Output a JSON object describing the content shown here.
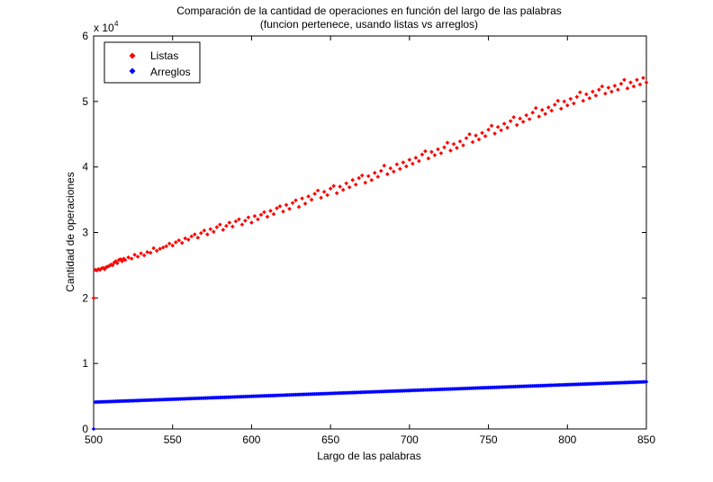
{
  "chart_data": {
    "type": "scatter",
    "title": "Comparación de la cantidad de operaciones en función del largo de las palabras",
    "subtitle": "(funcion pertenece, usando listas vs arreglos)",
    "xlabel": "Largo de las palabras",
    "ylabel": "Cantidad de operaciones",
    "xlim": [
      500,
      850
    ],
    "ylim": [
      0,
      60000
    ],
    "xticks": [
      500,
      550,
      600,
      650,
      700,
      750,
      800,
      850
    ],
    "yticks": [
      0,
      10000,
      20000,
      30000,
      40000,
      50000,
      60000
    ],
    "yticklabels": [
      "0",
      "1",
      "2",
      "3",
      "4",
      "5",
      "6"
    ],
    "y_exponent_base": "x 10",
    "y_exponent_power": "4",
    "grid": false,
    "legend_position": "top-left",
    "series": [
      {
        "name": "Listas",
        "color": "#ff0000",
        "marker": "diamond",
        "points": [
          [
            500,
            20000
          ],
          [
            501,
            24300
          ],
          [
            502,
            24200
          ],
          [
            503,
            24400
          ],
          [
            504,
            24300
          ],
          [
            505,
            24500
          ],
          [
            506,
            24600
          ],
          [
            507,
            24400
          ],
          [
            508,
            24700
          ],
          [
            509,
            24800
          ],
          [
            510,
            24900
          ],
          [
            511,
            25100
          ],
          [
            512,
            25000
          ],
          [
            513,
            25400
          ],
          [
            514,
            25600
          ],
          [
            515,
            25300
          ],
          [
            516,
            25800
          ],
          [
            517,
            25900
          ],
          [
            518,
            25600
          ],
          [
            519,
            26000
          ],
          [
            520,
            25800
          ],
          [
            522,
            26200
          ],
          [
            524,
            26000
          ],
          [
            526,
            26600
          ],
          [
            528,
            26300
          ],
          [
            530,
            26800
          ],
          [
            532,
            26500
          ],
          [
            534,
            27000
          ],
          [
            536,
            26900
          ],
          [
            538,
            27600
          ],
          [
            540,
            27200
          ],
          [
            542,
            27500
          ],
          [
            544,
            27700
          ],
          [
            546,
            27900
          ],
          [
            548,
            28300
          ],
          [
            550,
            28000
          ],
          [
            552,
            28500
          ],
          [
            554,
            28800
          ],
          [
            556,
            28400
          ],
          [
            558,
            29100
          ],
          [
            560,
            28900
          ],
          [
            562,
            29400
          ],
          [
            564,
            29700
          ],
          [
            566,
            29200
          ],
          [
            568,
            29900
          ],
          [
            570,
            30300
          ],
          [
            572,
            29700
          ],
          [
            574,
            30500
          ],
          [
            576,
            30100
          ],
          [
            578,
            30800
          ],
          [
            580,
            31200
          ],
          [
            582,
            30400
          ],
          [
            584,
            31000
          ],
          [
            586,
            31500
          ],
          [
            588,
            30900
          ],
          [
            590,
            31700
          ],
          [
            592,
            32000
          ],
          [
            594,
            31200
          ],
          [
            596,
            31800
          ],
          [
            598,
            32300
          ],
          [
            600,
            31500
          ],
          [
            602,
            32500
          ],
          [
            604,
            32000
          ],
          [
            606,
            32700
          ],
          [
            608,
            33100
          ],
          [
            610,
            32400
          ],
          [
            612,
            33300
          ],
          [
            614,
            32800
          ],
          [
            616,
            33700
          ],
          [
            618,
            34000
          ],
          [
            620,
            33200
          ],
          [
            622,
            34200
          ],
          [
            624,
            33600
          ],
          [
            626,
            34500
          ],
          [
            628,
            34900
          ],
          [
            630,
            33900
          ],
          [
            632,
            35200
          ],
          [
            634,
            34400
          ],
          [
            636,
            35500
          ],
          [
            638,
            35000
          ],
          [
            640,
            35900
          ],
          [
            642,
            36400
          ],
          [
            644,
            35300
          ],
          [
            646,
            36200
          ],
          [
            648,
            35700
          ],
          [
            650,
            36700
          ],
          [
            652,
            37100
          ],
          [
            654,
            36000
          ],
          [
            656,
            37000
          ],
          [
            658,
            36500
          ],
          [
            660,
            37500
          ],
          [
            662,
            36900
          ],
          [
            664,
            38000
          ],
          [
            666,
            37300
          ],
          [
            668,
            38300
          ],
          [
            670,
            38700
          ],
          [
            672,
            37600
          ],
          [
            674,
            38600
          ],
          [
            676,
            38000
          ],
          [
            678,
            39100
          ],
          [
            680,
            38500
          ],
          [
            682,
            39400
          ],
          [
            684,
            40200
          ],
          [
            686,
            38900
          ],
          [
            688,
            39800
          ],
          [
            690,
            39300
          ],
          [
            692,
            40400
          ],
          [
            694,
            39700
          ],
          [
            696,
            40700
          ],
          [
            698,
            40100
          ],
          [
            700,
            41100
          ],
          [
            702,
            40500
          ],
          [
            704,
            41400
          ],
          [
            706,
            40900
          ],
          [
            708,
            41900
          ],
          [
            710,
            42400
          ],
          [
            712,
            41300
          ],
          [
            714,
            42300
          ],
          [
            716,
            41800
          ],
          [
            718,
            42700
          ],
          [
            720,
            42100
          ],
          [
            722,
            43000
          ],
          [
            724,
            43700
          ],
          [
            726,
            42500
          ],
          [
            728,
            43500
          ],
          [
            730,
            42900
          ],
          [
            732,
            43900
          ],
          [
            734,
            43300
          ],
          [
            736,
            44400
          ],
          [
            738,
            45000
          ],
          [
            740,
            43800
          ],
          [
            742,
            44800
          ],
          [
            744,
            44200
          ],
          [
            746,
            45200
          ],
          [
            748,
            44700
          ],
          [
            750,
            45700
          ],
          [
            752,
            46300
          ],
          [
            754,
            45100
          ],
          [
            756,
            46100
          ],
          [
            758,
            45600
          ],
          [
            760,
            46600
          ],
          [
            762,
            46000
          ],
          [
            764,
            47000
          ],
          [
            766,
            47600
          ],
          [
            768,
            46400
          ],
          [
            770,
            47400
          ],
          [
            772,
            46900
          ],
          [
            774,
            47900
          ],
          [
            776,
            47300
          ],
          [
            778,
            48300
          ],
          [
            780,
            49000
          ],
          [
            782,
            47700
          ],
          [
            784,
            48700
          ],
          [
            786,
            48100
          ],
          [
            788,
            49100
          ],
          [
            790,
            48600
          ],
          [
            792,
            49500
          ],
          [
            794,
            50100
          ],
          [
            796,
            48900
          ],
          [
            798,
            50000
          ],
          [
            800,
            49400
          ],
          [
            802,
            50400
          ],
          [
            804,
            49700
          ],
          [
            806,
            50700
          ],
          [
            808,
            51400
          ],
          [
            810,
            50100
          ],
          [
            812,
            51100
          ],
          [
            814,
            50500
          ],
          [
            816,
            51500
          ],
          [
            818,
            50900
          ],
          [
            820,
            51800
          ],
          [
            822,
            52300
          ],
          [
            824,
            51200
          ],
          [
            826,
            52100
          ],
          [
            828,
            51500
          ],
          [
            830,
            52400
          ],
          [
            832,
            51800
          ],
          [
            834,
            52700
          ],
          [
            836,
            53300
          ],
          [
            838,
            52000
          ],
          [
            840,
            52900
          ],
          [
            842,
            52300
          ],
          [
            844,
            53300
          ],
          [
            846,
            52600
          ],
          [
            848,
            53600
          ],
          [
            850,
            52900
          ]
        ]
      },
      {
        "name": "Arreglos",
        "color": "#0000ff",
        "marker": "diamond",
        "start_point": [
          500,
          0
        ],
        "x_start": 501,
        "x_end": 850,
        "x_step": 1,
        "y_start": 4100,
        "y_end": 7200
      }
    ]
  }
}
